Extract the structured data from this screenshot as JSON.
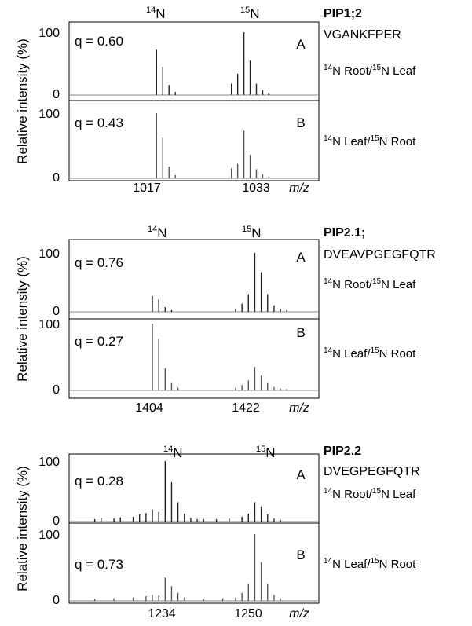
{
  "y_axis_label": "Relative intensity (%)",
  "x_axis_unit": "m/z",
  "iso_labels": {
    "light_mass": "14",
    "heavy_mass": "15",
    "element": "N"
  },
  "panel_descriptions": [
    {
      "light": "Root",
      "heavy": "Leaf"
    },
    {
      "light": "Leaf",
      "heavy": "Root"
    }
  ],
  "figures": [
    {
      "protein": "PIP1;2",
      "peptide": "VGANKFPER",
      "x_ticks": [
        "1017",
        "1033"
      ],
      "panels": [
        {
          "letter": "A",
          "q_text": "q = 0.60",
          "yticks": [
            "100",
            "0"
          ]
        },
        {
          "letter": "B",
          "q_text": "q = 0.43",
          "yticks": [
            "100",
            "0"
          ]
        }
      ]
    },
    {
      "protein": "PIP2.1;",
      "peptide": "DVEAVPGEGFQTR",
      "x_ticks": [
        "1404",
        "1422"
      ],
      "panels": [
        {
          "letter": "A",
          "q_text": "q = 0.76",
          "yticks": [
            "100",
            "0"
          ]
        },
        {
          "letter": "B",
          "q_text": "q = 0.27",
          "yticks": [
            "100",
            "0"
          ]
        }
      ]
    },
    {
      "protein": "PIP2.2",
      "peptide": "DVEGPEGFQTR",
      "x_ticks": [
        "1234",
        "1250"
      ],
      "panels": [
        {
          "letter": "A",
          "q_text": "q = 0.28",
          "yticks": [
            "100",
            "0"
          ]
        },
        {
          "letter": "B",
          "q_text": "q = 0.73",
          "yticks": [
            "100",
            "0"
          ]
        }
      ]
    }
  ],
  "chart_data": [
    {
      "type": "bar",
      "title": "PIP1;2 VGANKFPER",
      "ylabel": "Relative intensity (%)",
      "xlabel": "m/z",
      "ylim": [
        0,
        100
      ],
      "xlim": [
        1003,
        1043
      ],
      "series": [
        {
          "name": "A",
          "peaks": [
            [
              1017,
              72
            ],
            [
              1018,
              45
            ],
            [
              1019,
              16
            ],
            [
              1020,
              5
            ],
            [
              1029,
              18
            ],
            [
              1030,
              34
            ],
            [
              1031,
              100
            ],
            [
              1032,
              55
            ],
            [
              1033,
              18
            ],
            [
              1034,
              8
            ],
            [
              1035,
              4
            ]
          ]
        },
        {
          "name": "B",
          "peaks": [
            [
              1017,
              100
            ],
            [
              1018,
              62
            ],
            [
              1019,
              18
            ],
            [
              1020,
              5
            ],
            [
              1029,
              15
            ],
            [
              1030,
              22
            ],
            [
              1031,
              73
            ],
            [
              1032,
              36
            ],
            [
              1033,
              14
            ],
            [
              1034,
              6
            ],
            [
              1035,
              3
            ]
          ]
        }
      ]
    },
    {
      "type": "bar",
      "title": "PIP2.1; DVEAVPGEGFQTR",
      "ylabel": "Relative intensity (%)",
      "xlabel": "m/z",
      "ylim": [
        0,
        100
      ],
      "xlim": [
        1391,
        1430
      ],
      "series": [
        {
          "name": "A",
          "peaks": [
            [
              1404,
              27
            ],
            [
              1405,
              21
            ],
            [
              1406,
              8
            ],
            [
              1407,
              3
            ],
            [
              1417,
              5
            ],
            [
              1418,
              14
            ],
            [
              1419,
              30
            ],
            [
              1420,
              100
            ],
            [
              1421,
              67
            ],
            [
              1422,
              30
            ],
            [
              1423,
              11
            ],
            [
              1424,
              5
            ],
            [
              1425,
              3
            ]
          ]
        },
        {
          "name": "B",
          "peaks": [
            [
              1404,
              100
            ],
            [
              1405,
              77
            ],
            [
              1406,
              33
            ],
            [
              1407,
              11
            ],
            [
              1408,
              4
            ],
            [
              1417,
              4
            ],
            [
              1418,
              8
            ],
            [
              1419,
              15
            ],
            [
              1420,
              35
            ],
            [
              1421,
              22
            ],
            [
              1422,
              11
            ],
            [
              1423,
              5
            ],
            [
              1424,
              3
            ],
            [
              1425,
              2
            ]
          ]
        }
      ]
    },
    {
      "type": "bar",
      "title": "PIP2.2 DVEGPEGFQTR",
      "ylabel": "Relative intensity (%)",
      "xlabel": "m/z",
      "ylim": [
        0,
        100
      ],
      "xlim": [
        1219,
        1258
      ],
      "series": [
        {
          "name": "A",
          "peaks": [
            [
              1223,
              4
            ],
            [
              1224,
              6
            ],
            [
              1226,
              5
            ],
            [
              1227,
              7
            ],
            [
              1229,
              8
            ],
            [
              1230,
              12
            ],
            [
              1231,
              14
            ],
            [
              1232,
              20
            ],
            [
              1233,
              16
            ],
            [
              1234,
              100
            ],
            [
              1235,
              65
            ],
            [
              1236,
              32
            ],
            [
              1237,
              13
            ],
            [
              1238,
              6
            ],
            [
              1239,
              4
            ],
            [
              1240,
              4
            ],
            [
              1242,
              4
            ],
            [
              1244,
              5
            ],
            [
              1246,
              8
            ],
            [
              1247,
              13
            ],
            [
              1248,
              32
            ],
            [
              1249,
              25
            ],
            [
              1250,
              12
            ],
            [
              1251,
              5
            ],
            [
              1252,
              3
            ]
          ]
        },
        {
          "name": "B",
          "peaks": [
            [
              1223,
              3
            ],
            [
              1226,
              4
            ],
            [
              1229,
              5
            ],
            [
              1231,
              7
            ],
            [
              1232,
              9
            ],
            [
              1233,
              8
            ],
            [
              1234,
              35
            ],
            [
              1235,
              22
            ],
            [
              1236,
              12
            ],
            [
              1237,
              5
            ],
            [
              1240,
              3
            ],
            [
              1243,
              4
            ],
            [
              1245,
              5
            ],
            [
              1246,
              12
            ],
            [
              1247,
              25
            ],
            [
              1248,
              100
            ],
            [
              1249,
              58
            ],
            [
              1250,
              25
            ],
            [
              1251,
              9
            ],
            [
              1252,
              4
            ]
          ]
        }
      ]
    }
  ]
}
